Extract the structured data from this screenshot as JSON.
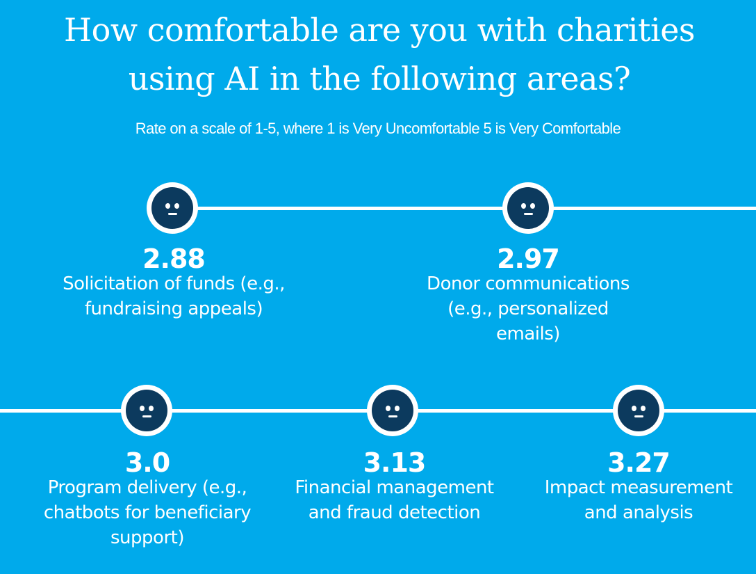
{
  "title": {
    "line1": "How comfortable are you with charities",
    "line2": "using AI in the following areas?"
  },
  "subtitle": "Rate on a scale of 1-5, where 1 is Very Uncomfortable 5 is Very Comfortable",
  "icon": "neutral-face-icon",
  "colors": {
    "background": "#00aaeb",
    "marker_face": "#0c3a5e",
    "text": "#ffffff"
  },
  "items": [
    {
      "value": "2.88",
      "label_lines": [
        "Solicitation of funds (e.g.,",
        "fundraising appeals)"
      ]
    },
    {
      "value": "2.97",
      "label_lines": [
        "Donor communications",
        "(e.g., personalized",
        "emails)"
      ]
    },
    {
      "value": "3.0",
      "label_lines": [
        "Program delivery (e.g.,",
        "chatbots for beneficiary",
        "support)"
      ]
    },
    {
      "value": "3.13",
      "label_lines": [
        "Financial management",
        "and fraud detection"
      ]
    },
    {
      "value": "3.27",
      "label_lines": [
        "Impact measurement",
        "and analysis"
      ]
    }
  ]
}
